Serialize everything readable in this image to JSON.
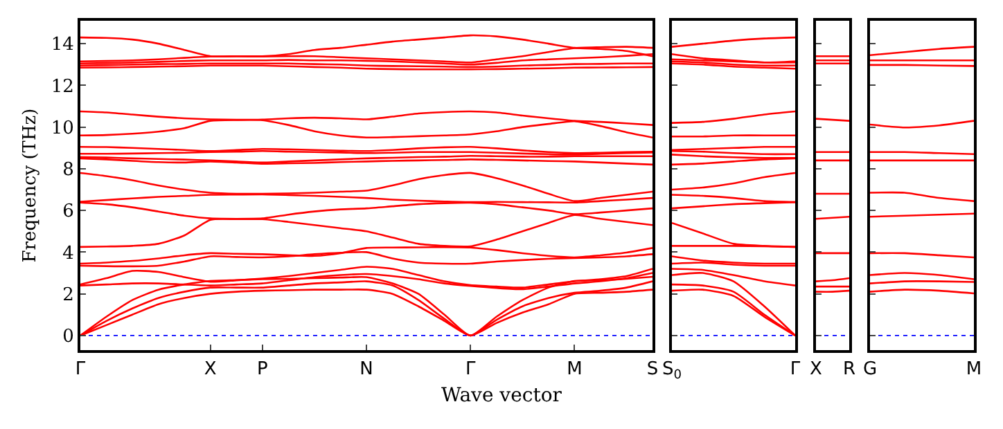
{
  "chart_data": [
    {
      "type": "line",
      "ylabel": "Frequency (THz)",
      "xlabel": "Wave vector",
      "categories": [
        "Γ",
        null,
        null,
        null,
        null,
        "X",
        null,
        "P",
        null,
        null,
        null,
        "N",
        null,
        null,
        null,
        "Γ",
        null,
        null,
        null,
        "M",
        null,
        null,
        "S"
      ],
      "ylim": [
        -0.7,
        15.1
      ],
      "yticks": [
        0,
        2,
        4,
        6,
        8,
        10,
        12,
        14
      ],
      "ref_lines": [
        {
          "axis": "y",
          "value": 0,
          "color": "#0000ff",
          "line_style": "dotted"
        }
      ],
      "series": [
        {
          "color": "#ff0000",
          "values": [
            14.3,
            14.28,
            14.2,
            14.0,
            13.7,
            13.4,
            13.4,
            13.4,
            13.5,
            13.7,
            13.8,
            13.95,
            14.1,
            14.2,
            14.3,
            14.4,
            14.35,
            14.2,
            14.0,
            13.8,
            13.75,
            13.65,
            13.4
          ]
        },
        {
          "color": "#ff0000",
          "values": [
            13.15,
            13.17,
            13.2,
            13.25,
            13.32,
            13.38,
            13.39,
            13.38,
            13.4,
            13.4,
            13.35,
            13.3,
            13.25,
            13.2,
            13.15,
            13.1,
            13.25,
            13.4,
            13.6,
            13.79,
            13.83,
            13.85,
            13.8
          ]
        },
        {
          "color": "#ff0000",
          "values": [
            13.05,
            13.07,
            13.1,
            13.13,
            13.17,
            13.2,
            13.2,
            13.2,
            13.22,
            13.2,
            13.2,
            13.18,
            13.15,
            13.1,
            13.05,
            13.0,
            13.08,
            13.2,
            13.25,
            13.3,
            13.35,
            13.42,
            13.5
          ]
        },
        {
          "color": "#ff0000",
          "values": [
            12.95,
            12.97,
            13.0,
            13.02,
            13.03,
            13.05,
            13.05,
            13.05,
            13.05,
            13.02,
            13.0,
            12.95,
            12.93,
            12.92,
            12.9,
            12.88,
            12.9,
            12.95,
            12.98,
            13.02,
            13.03,
            13.05,
            13.05
          ]
        },
        {
          "color": "#ff0000",
          "values": [
            12.85,
            12.86,
            12.88,
            12.9,
            12.92,
            12.95,
            12.95,
            12.95,
            12.92,
            12.88,
            12.85,
            12.8,
            12.78,
            12.77,
            12.77,
            12.77,
            12.78,
            12.8,
            12.82,
            12.85,
            12.86,
            12.87,
            12.88
          ]
        },
        {
          "color": "#ff0000",
          "values": [
            10.75,
            10.7,
            10.6,
            10.5,
            10.42,
            10.37,
            10.35,
            10.36,
            10.42,
            10.45,
            10.42,
            10.37,
            10.5,
            10.65,
            10.72,
            10.75,
            10.7,
            10.55,
            10.42,
            10.3,
            10.25,
            10.18,
            10.1
          ]
        },
        {
          "color": "#ff0000",
          "values": [
            9.6,
            9.62,
            9.68,
            9.78,
            9.95,
            10.3,
            10.34,
            10.33,
            10.1,
            9.8,
            9.6,
            9.5,
            9.52,
            9.56,
            9.6,
            9.65,
            9.8,
            10.0,
            10.15,
            10.28,
            10.05,
            9.75,
            9.5
          ]
        },
        {
          "color": "#ff0000",
          "values": [
            9.05,
            9.04,
            9.0,
            8.95,
            8.9,
            8.85,
            8.9,
            8.95,
            8.93,
            8.9,
            8.87,
            8.85,
            8.9,
            8.98,
            9.03,
            9.05,
            8.98,
            8.88,
            8.8,
            8.75,
            8.77,
            8.8,
            8.82
          ]
        },
        {
          "color": "#ff0000",
          "values": [
            8.72,
            8.72,
            8.73,
            8.75,
            8.77,
            8.8,
            8.82,
            8.85,
            8.82,
            8.8,
            8.78,
            8.75,
            8.77,
            8.8,
            8.8,
            8.8,
            8.77,
            8.73,
            8.7,
            8.68,
            8.72,
            8.75,
            8.78
          ]
        },
        {
          "color": "#ff0000",
          "values": [
            8.56,
            8.54,
            8.5,
            8.47,
            8.44,
            8.4,
            8.35,
            8.3,
            8.35,
            8.4,
            8.45,
            8.5,
            8.53,
            8.56,
            8.58,
            8.62,
            8.6,
            8.58,
            8.58,
            8.6,
            8.6,
            8.6,
            8.6
          ]
        },
        {
          "color": "#ff0000",
          "values": [
            8.5,
            8.45,
            8.38,
            8.32,
            8.3,
            8.35,
            8.3,
            8.24,
            8.26,
            8.28,
            8.32,
            8.35,
            8.38,
            8.4,
            8.42,
            8.45,
            8.43,
            8.4,
            8.37,
            8.35,
            8.3,
            8.25,
            8.2
          ]
        },
        {
          "color": "#ff0000",
          "values": [
            7.8,
            7.65,
            7.45,
            7.2,
            7.0,
            6.85,
            6.8,
            6.8,
            6.82,
            6.85,
            6.9,
            6.95,
            7.2,
            7.5,
            7.7,
            7.8,
            7.55,
            7.2,
            6.8,
            6.45,
            6.6,
            6.75,
            6.9
          ]
        },
        {
          "color": "#ff0000",
          "values": [
            6.42,
            6.5,
            6.58,
            6.65,
            6.7,
            6.75,
            6.76,
            6.77,
            6.74,
            6.7,
            6.65,
            6.6,
            6.52,
            6.47,
            6.43,
            6.4,
            6.41,
            6.4,
            6.39,
            6.38,
            6.45,
            6.52,
            6.6
          ]
        },
        {
          "color": "#ff0000",
          "values": [
            6.38,
            6.3,
            6.15,
            5.95,
            5.75,
            5.62,
            5.6,
            5.62,
            5.8,
            5.95,
            6.05,
            6.1,
            6.2,
            6.3,
            6.35,
            6.37,
            6.3,
            6.15,
            6.0,
            5.82,
            5.9,
            6.0,
            6.1
          ]
        },
        {
          "color": "#ff0000",
          "values": [
            4.25,
            4.27,
            4.3,
            4.4,
            4.8,
            5.55,
            5.58,
            5.58,
            5.45,
            5.3,
            5.15,
            5.0,
            4.7,
            4.4,
            4.3,
            4.28,
            4.6,
            5.0,
            5.4,
            5.78,
            5.6,
            5.45,
            5.3
          ]
        },
        {
          "color": "#ff0000",
          "values": [
            3.45,
            3.5,
            3.58,
            3.7,
            3.85,
            3.95,
            3.92,
            3.9,
            3.85,
            3.82,
            3.95,
            4.2,
            4.22,
            4.23,
            4.24,
            4.22,
            4.1,
            3.95,
            3.82,
            3.75,
            3.85,
            3.98,
            4.2
          ]
        },
        {
          "color": "#ff0000",
          "values": [
            3.35,
            3.33,
            3.32,
            3.35,
            3.55,
            3.8,
            3.77,
            3.75,
            3.8,
            3.9,
            3.97,
            4.0,
            3.7,
            3.5,
            3.45,
            3.45,
            3.55,
            3.62,
            3.68,
            3.72,
            3.75,
            3.8,
            3.9
          ]
        },
        {
          "color": "#ff0000",
          "values": [
            2.45,
            2.75,
            3.1,
            3.05,
            2.8,
            2.58,
            2.65,
            2.73,
            2.85,
            3.0,
            3.15,
            3.3,
            3.2,
            2.9,
            2.6,
            2.42,
            2.35,
            2.3,
            2.45,
            2.6,
            2.7,
            2.85,
            3.2
          ]
        },
        {
          "color": "#ff0000",
          "values": [
            2.4,
            2.45,
            2.5,
            2.5,
            2.45,
            2.4,
            2.45,
            2.5,
            2.65,
            2.8,
            2.9,
            2.95,
            2.85,
            2.7,
            2.5,
            2.38,
            2.28,
            2.22,
            2.35,
            2.5,
            2.6,
            2.75,
            3.0
          ]
        },
        {
          "color": "#ff0000",
          "values": [
            0,
            0.9,
            1.7,
            2.2,
            2.45,
            2.62,
            2.66,
            2.7,
            2.72,
            2.75,
            2.78,
            2.8,
            2.5,
            2.0,
            1.0,
            0,
            0.9,
            1.7,
            2.3,
            2.62,
            2.65,
            2.72,
            2.82
          ]
        },
        {
          "color": "#ff0000",
          "values": [
            0,
            0.7,
            1.3,
            1.8,
            2.1,
            2.3,
            2.3,
            2.3,
            2.4,
            2.5,
            2.55,
            2.6,
            2.4,
            1.7,
            0.8,
            0,
            0.75,
            1.4,
            1.8,
            2.05,
            2.15,
            2.3,
            2.6
          ]
        },
        {
          "color": "#ff0000",
          "values": [
            0,
            0.5,
            1.0,
            1.5,
            1.8,
            2.0,
            2.1,
            2.15,
            2.17,
            2.2,
            2.2,
            2.2,
            2.0,
            1.4,
            0.7,
            0,
            0.6,
            1.1,
            1.5,
            2.0,
            2.05,
            2.1,
            2.2
          ]
        }
      ]
    },
    {
      "type": "line",
      "tick_labels": "x",
      "categories": [
        "S$_{0}$",
        null,
        null,
        null,
        "Γ"
      ],
      "ylim": [
        -0.7,
        15.1
      ],
      "yticks": [
        {
          "value": 0,
          "label": null
        },
        {
          "value": 2,
          "label": null
        },
        {
          "value": 4,
          "label": null
        },
        {
          "value": 6,
          "label": null
        },
        {
          "value": 8,
          "label": null
        },
        {
          "value": 10,
          "label": null
        },
        {
          "value": 12,
          "label": null
        },
        {
          "value": 14,
          "label": null
        }
      ],
      "ref_lines": [
        {
          "axis": "y",
          "value": 0,
          "color": "#0000ff",
          "line_style": "dotted"
        }
      ],
      "series": [
        {
          "color": "#ff0000",
          "values": [
            13.85,
            14.0,
            14.15,
            14.25,
            14.3
          ]
        },
        {
          "color": "#ff0000",
          "values": [
            13.5,
            13.3,
            13.2,
            13.1,
            13.15
          ]
        },
        {
          "color": "#ff0000",
          "values": [
            13.25,
            13.2,
            13.15,
            13.1,
            13.1
          ]
        },
        {
          "color": "#ff0000",
          "values": [
            13.15,
            13.1,
            13.0,
            12.95,
            12.95
          ]
        },
        {
          "color": "#ff0000",
          "values": [
            13.05,
            13.0,
            12.9,
            12.85,
            12.8
          ]
        },
        {
          "color": "#ff0000",
          "values": [
            10.2,
            10.25,
            10.4,
            10.6,
            10.75
          ]
        },
        {
          "color": "#ff0000",
          "values": [
            9.55,
            9.55,
            9.6,
            9.6,
            9.6
          ]
        },
        {
          "color": "#ff0000",
          "values": [
            8.9,
            8.95,
            9.0,
            9.05,
            9.05
          ]
        },
        {
          "color": "#ff0000",
          "values": [
            8.85,
            8.82,
            8.75,
            8.7,
            8.7
          ]
        },
        {
          "color": "#ff0000",
          "values": [
            8.68,
            8.6,
            8.55,
            8.52,
            8.52
          ]
        },
        {
          "color": "#ff0000",
          "values": [
            8.2,
            8.25,
            8.35,
            8.45,
            8.5
          ]
        },
        {
          "color": "#ff0000",
          "values": [
            7.0,
            7.1,
            7.3,
            7.6,
            7.8
          ]
        },
        {
          "color": "#ff0000",
          "values": [
            6.75,
            6.7,
            6.6,
            6.45,
            6.4
          ]
        },
        {
          "color": "#ff0000",
          "values": [
            6.1,
            6.2,
            6.3,
            6.35,
            6.4
          ]
        },
        {
          "color": "#ff0000",
          "values": [
            5.4,
            4.9,
            4.4,
            4.3,
            4.25
          ]
        },
        {
          "color": "#ff0000",
          "values": [
            4.3,
            4.3,
            4.3,
            4.28,
            4.25
          ]
        },
        {
          "color": "#ff0000",
          "values": [
            3.8,
            3.6,
            3.5,
            3.45,
            3.45
          ]
        },
        {
          "color": "#ff0000",
          "values": [
            3.45,
            3.5,
            3.4,
            3.35,
            3.35
          ]
        },
        {
          "color": "#ff0000",
          "values": [
            3.2,
            3.15,
            2.9,
            2.6,
            2.4
          ]
        },
        {
          "color": "#ff0000",
          "values": [
            2.9,
            3.0,
            2.6,
            1.4,
            0
          ]
        },
        {
          "color": "#ff0000",
          "values": [
            2.45,
            2.4,
            2.1,
            1.0,
            0
          ]
        },
        {
          "color": "#ff0000",
          "values": [
            2.15,
            2.2,
            1.9,
            0.9,
            0
          ]
        }
      ]
    },
    {
      "type": "line",
      "tick_labels": "x",
      "categories": [
        "X",
        null,
        "R"
      ],
      "ylim": [
        -0.7,
        15.1
      ],
      "yticks": [
        {
          "value": 0,
          "label": null
        },
        {
          "value": 2,
          "label": null
        },
        {
          "value": 4,
          "label": null
        },
        {
          "value": 6,
          "label": null
        },
        {
          "value": 8,
          "label": null
        },
        {
          "value": 10,
          "label": null
        },
        {
          "value": 12,
          "label": null
        },
        {
          "value": 14,
          "label": null
        }
      ],
      "ref_lines": [
        {
          "axis": "y",
          "value": 0,
          "color": "#0000ff",
          "line_style": "dotted"
        }
      ],
      "series": [
        {
          "color": "#ff0000",
          "values": [
            13.4,
            13.4,
            13.4
          ]
        },
        {
          "color": "#ff0000",
          "values": [
            13.2,
            13.2,
            13.2
          ]
        },
        {
          "color": "#ff0000",
          "values": [
            13.05,
            13.05,
            13.05
          ]
        },
        {
          "color": "#ff0000",
          "values": [
            10.4,
            10.35,
            10.3
          ]
        },
        {
          "color": "#ff0000",
          "values": [
            8.8,
            8.8,
            8.8
          ]
        },
        {
          "color": "#ff0000",
          "values": [
            8.4,
            8.4,
            8.4
          ]
        },
        {
          "color": "#ff0000",
          "values": [
            6.8,
            6.8,
            6.8
          ]
        },
        {
          "color": "#ff0000",
          "values": [
            5.6,
            5.65,
            5.7
          ]
        },
        {
          "color": "#ff0000",
          "values": [
            3.95,
            3.95,
            3.95
          ]
        },
        {
          "color": "#ff0000",
          "values": [
            2.6,
            2.65,
            2.75
          ]
        },
        {
          "color": "#ff0000",
          "values": [
            2.35,
            2.35,
            2.35
          ]
        },
        {
          "color": "#ff0000",
          "values": [
            2.1,
            2.1,
            2.15
          ]
        }
      ]
    },
    {
      "type": "line",
      "tick_labels": "x",
      "categories": [
        "G",
        null,
        null,
        "M"
      ],
      "ylim": [
        -0.7,
        15.1
      ],
      "yticks": [
        {
          "value": 0,
          "label": null
        },
        {
          "value": 2,
          "label": null
        },
        {
          "value": 4,
          "label": null
        },
        {
          "value": 6,
          "label": null
        },
        {
          "value": 8,
          "label": null
        },
        {
          "value": 10,
          "label": null
        },
        {
          "value": 12,
          "label": null
        },
        {
          "value": 14,
          "label": null
        }
      ],
      "ref_lines": [
        {
          "axis": "y",
          "value": 0,
          "color": "#0000ff",
          "line_style": "dotted"
        }
      ],
      "series": [
        {
          "color": "#ff0000",
          "values": [
            13.45,
            13.6,
            13.75,
            13.85
          ]
        },
        {
          "color": "#ff0000",
          "values": [
            13.2,
            13.2,
            13.2,
            13.2
          ]
        },
        {
          "color": "#ff0000",
          "values": [
            12.98,
            12.98,
            12.95,
            12.93
          ]
        },
        {
          "color": "#ff0000",
          "values": [
            10.12,
            9.98,
            10.08,
            10.3
          ]
        },
        {
          "color": "#ff0000",
          "values": [
            8.8,
            8.8,
            8.75,
            8.7
          ]
        },
        {
          "color": "#ff0000",
          "values": [
            8.4,
            8.4,
            8.4,
            8.4
          ]
        },
        {
          "color": "#ff0000",
          "values": [
            6.85,
            6.85,
            6.6,
            6.45
          ]
        },
        {
          "color": "#ff0000",
          "values": [
            5.7,
            5.75,
            5.8,
            5.85
          ]
        },
        {
          "color": "#ff0000",
          "values": [
            3.95,
            3.95,
            3.85,
            3.75
          ]
        },
        {
          "color": "#ff0000",
          "values": [
            2.9,
            3.0,
            2.9,
            2.7
          ]
        },
        {
          "color": "#ff0000",
          "values": [
            2.5,
            2.6,
            2.6,
            2.57
          ]
        },
        {
          "color": "#ff0000",
          "values": [
            2.1,
            2.2,
            2.15,
            2.02
          ]
        }
      ]
    }
  ]
}
